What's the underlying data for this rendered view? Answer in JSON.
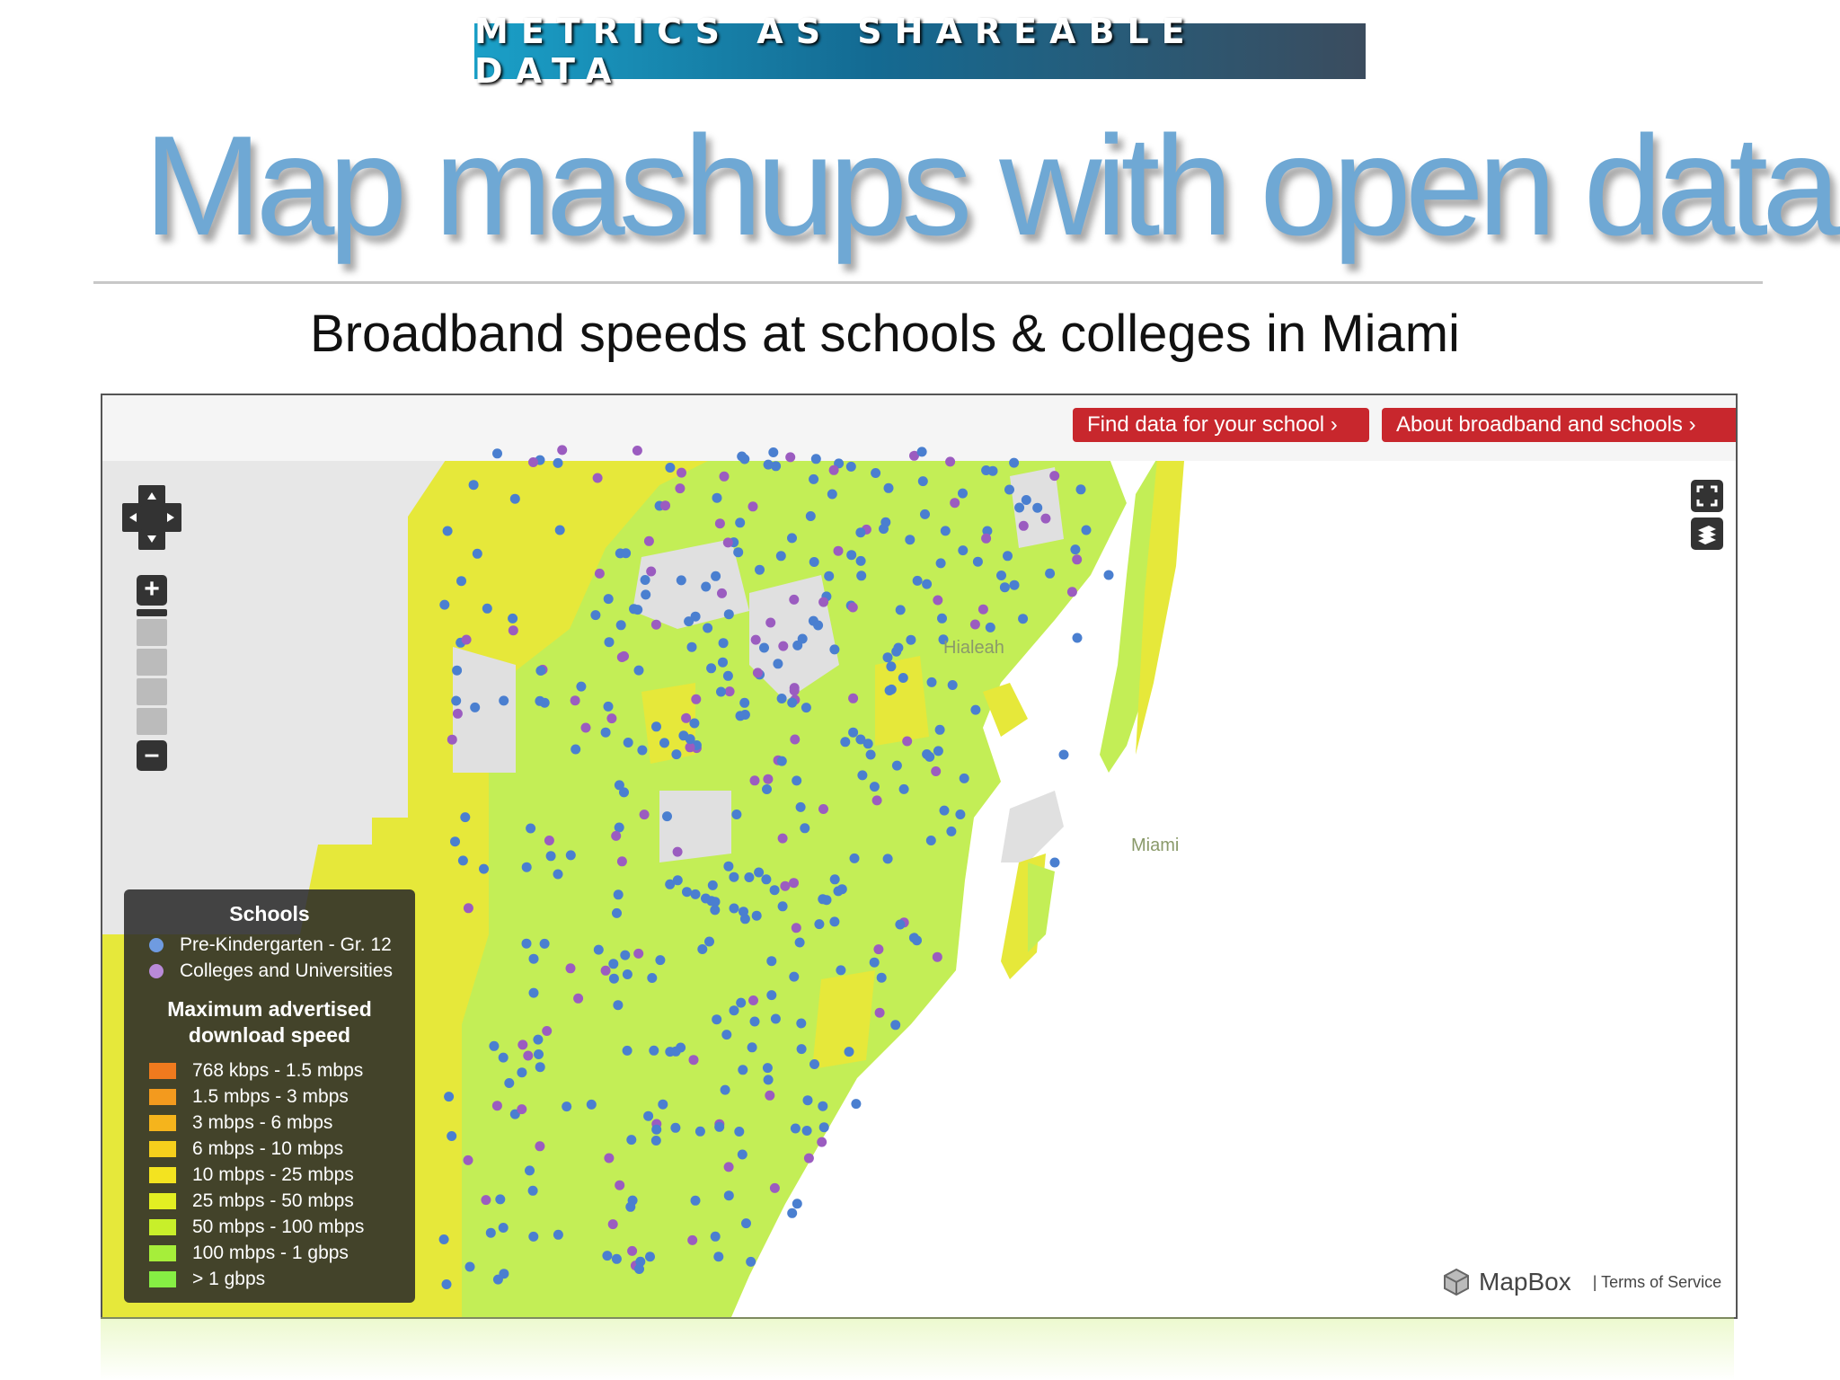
{
  "banner": "METRICS AS SHAREABLE DATA",
  "title": "Map mashups with open data",
  "subtitle": "Broadband speeds at schools & colleges in Miami",
  "map": {
    "buttons": {
      "find_school": "Find data for your school ›",
      "about": "About broadband and schools ›"
    },
    "zoom_in": "+",
    "zoom_out": "–",
    "labels": {
      "hialeah": "Hialeah",
      "miami": "Miami"
    },
    "attribution": {
      "logo": "MapBox",
      "terms": "| Terms of Service"
    },
    "colors": {
      "k12": "#4a7fd0",
      "college": "#9b5cc0",
      "land_fast": "#c3ee56",
      "land_mid": "#e6e83a",
      "water": "#ffffff",
      "background": "#e7e7e7"
    }
  },
  "legend": {
    "schools_heading": "Schools",
    "school_types": [
      {
        "label": "Pre-Kindergarten - Gr. 12",
        "color": "#6f9be0"
      },
      {
        "label": "Colleges and Universities",
        "color": "#b98ad8"
      }
    ],
    "speed_heading_1": "Maximum advertised",
    "speed_heading_2": "download speed",
    "speeds": [
      {
        "label": "768 kbps - 1.5 mbps",
        "color": "#f07a1e"
      },
      {
        "label": "1.5 mbps - 3 mbps",
        "color": "#f39a1e"
      },
      {
        "label": "3 mbps - 6 mbps",
        "color": "#f5b41c"
      },
      {
        "label": "6 mbps - 10 mbps",
        "color": "#f6cf1c"
      },
      {
        "label": "10 mbps - 25 mbps",
        "color": "#f3e320"
      },
      {
        "label": "25 mbps - 50 mbps",
        "color": "#e3ef22"
      },
      {
        "label": "50 mbps - 100 mbps",
        "color": "#c8ef2a"
      },
      {
        "label": "100 mbps - 1 gbps",
        "color": "#a6ee3a"
      },
      {
        "label": "> 1 gbps",
        "color": "#86ee44"
      }
    ]
  }
}
